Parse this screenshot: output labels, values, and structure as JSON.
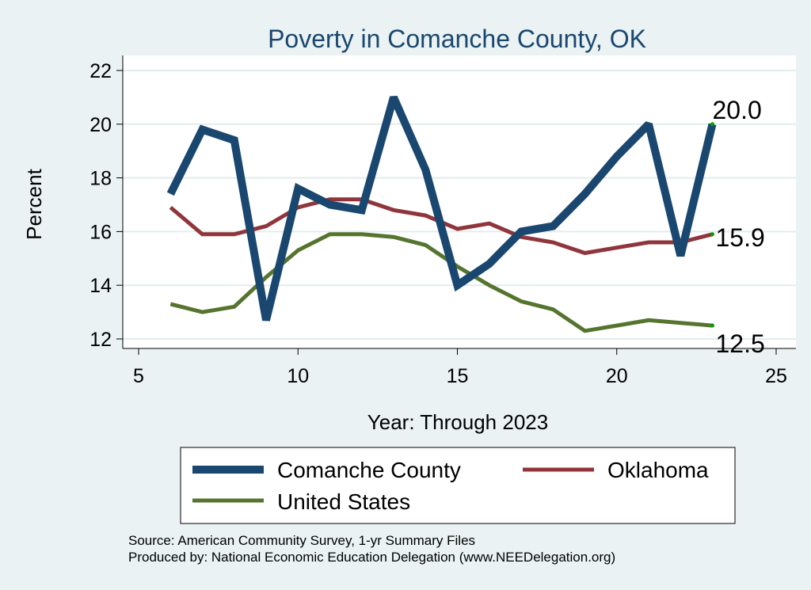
{
  "chart_data": {
    "type": "line",
    "title": "Poverty in Comanche County, OK",
    "xlabel": "Year: Through 2023",
    "ylabel": "Percent",
    "xlim": [
      5,
      25
    ],
    "ylim": [
      11.7,
      22.4
    ],
    "xticks": [
      5,
      10,
      15,
      20,
      25
    ],
    "yticks": [
      12,
      14,
      16,
      18,
      20,
      22
    ],
    "grid": true,
    "legend_position": "bottom",
    "series": [
      {
        "name": "Comanche County",
        "color": "#1a476f",
        "x": [
          6,
          7,
          8,
          9,
          10,
          11,
          12,
          13,
          14,
          15,
          16,
          17,
          18,
          19,
          20,
          21,
          22,
          23
        ],
        "y": [
          17.4,
          19.8,
          19.4,
          12.7,
          17.6,
          17.0,
          16.8,
          21.0,
          18.3,
          14.0,
          14.8,
          16.0,
          16.2,
          17.4,
          18.8,
          20.0,
          15.1,
          20.0
        ],
        "end_label": "20.0"
      },
      {
        "name": "Oklahoma",
        "color": "#90353b",
        "x": [
          6,
          7,
          8,
          9,
          10,
          11,
          12,
          13,
          14,
          15,
          16,
          17,
          18,
          19,
          20,
          21,
          22,
          23
        ],
        "y": [
          16.9,
          15.9,
          15.9,
          16.2,
          16.9,
          17.2,
          17.2,
          16.8,
          16.6,
          16.1,
          16.3,
          15.8,
          15.6,
          15.2,
          15.4,
          15.6,
          15.6,
          15.9
        ],
        "end_label": "15.9"
      },
      {
        "name": "United States",
        "color": "#55752f",
        "x": [
          6,
          7,
          8,
          9,
          10,
          11,
          12,
          13,
          14,
          15,
          16,
          17,
          18,
          19,
          20,
          21,
          22,
          23
        ],
        "y": [
          13.3,
          13.0,
          13.2,
          14.3,
          15.3,
          15.9,
          15.9,
          15.8,
          15.5,
          14.7,
          14.0,
          13.4,
          13.1,
          12.3,
          12.5,
          12.7,
          12.6,
          12.5
        ],
        "end_label": "12.5"
      }
    ],
    "source_lines": [
      "Source: American Community Survey, 1-yr Summary Files",
      "Produced by: National Economic Education Delegation (www.NEEDelegation.org)"
    ]
  }
}
